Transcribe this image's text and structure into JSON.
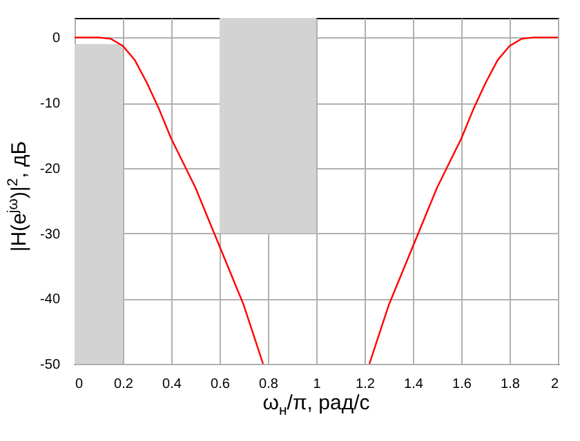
{
  "chart_data": {
    "type": "line",
    "xlabel": "ω$_{н}$/π, рад/с",
    "ylabel": "|H(e$^{jω}$)|$^{2}$, дБ",
    "series": [
      {
        "type": "histogram",
        "color": "#d3d3d3",
        "bins": [
          0,
          0.2,
          0.6,
          1
        ],
        "values": [
          49,
          null,
          33
        ],
        "base": [
          -50,
          null,
          -30
        ]
      },
      {
        "color": "#ff0000",
        "x": [
          0,
          0.1,
          0.15,
          0.2,
          0.25,
          0.3,
          0.35,
          0.4,
          0.5,
          0.6,
          0.7,
          0.78,
          1,
          1.22,
          1.3,
          1.4,
          1.5,
          1.6,
          1.65,
          1.7,
          1.75,
          1.8,
          1.85,
          1.9,
          2
        ],
        "values": [
          0,
          0,
          -0.2,
          -1.3,
          -3.5,
          -7,
          -11,
          -15.5,
          -23,
          -32,
          -41,
          -50,
          null,
          -50,
          -41,
          -32,
          -23,
          -15.5,
          -11,
          -7,
          -3.5,
          -1.3,
          -0.2,
          0,
          0
        ]
      }
    ],
    "xlim": [
      0,
      2
    ],
    "xticks": [
      {
        "value": 0,
        "label": "0"
      },
      {
        "value": 0.2,
        "label": "0.2"
      },
      {
        "value": 0.4,
        "label": "0.4"
      },
      {
        "value": 0.6,
        "label": "0.6"
      },
      {
        "value": 0.8,
        "label": "0.8"
      },
      {
        "value": 1,
        "label": "1"
      },
      {
        "value": 1.2,
        "label": "1.2"
      },
      {
        "value": 1.4,
        "label": "1.4"
      },
      {
        "value": 1.6,
        "label": "1.6"
      },
      {
        "value": 1.8,
        "label": "1.8"
      },
      {
        "value": 2,
        "label": "2"
      }
    ],
    "ylim": [
      -50,
      3
    ],
    "yticks": [
      {
        "value": 0,
        "label": "0"
      },
      {
        "value": -10,
        "label": "-10"
      },
      {
        "value": -20,
        "label": "-20"
      },
      {
        "value": -30,
        "label": "-30"
      },
      {
        "value": -40,
        "label": "-40"
      },
      {
        "value": -50,
        "label": "-50"
      }
    ],
    "grid": true,
    "marker": "none",
    "line_style": "solid"
  }
}
